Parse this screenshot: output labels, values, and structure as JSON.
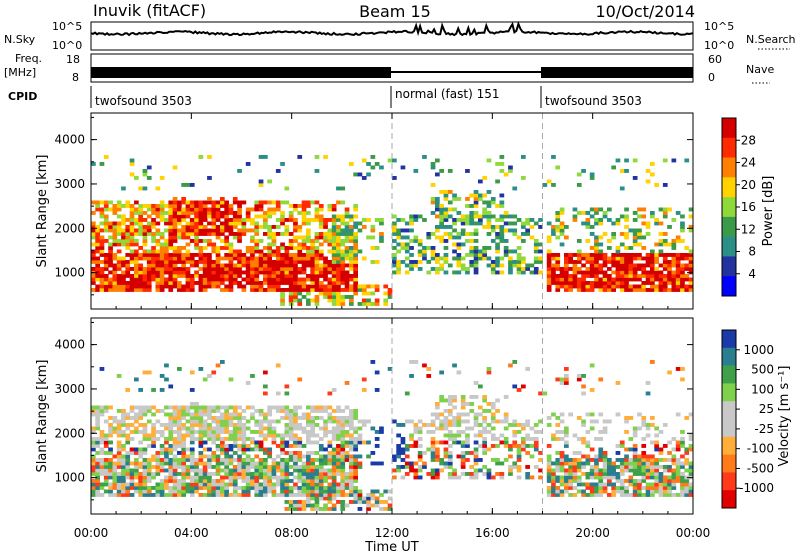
{
  "header": {
    "station": "Inuvik (fitACF)",
    "beam": "Beam 15",
    "date": "10/Oct/2014"
  },
  "top_strips": {
    "nsky_label": "N.Sky",
    "nsky_ticks": [
      "10^5",
      "10^0"
    ],
    "nsearch_label": "N.Search",
    "freq_label_1": "Freq.",
    "freq_label_2": "[MHz]",
    "freq_ticks": [
      "18",
      "8"
    ],
    "nave_label": "Nave",
    "nave_ticks": [
      "60",
      "0"
    ],
    "cpid_label": "CPID",
    "cpid_segments": [
      {
        "label": "twofsound 3503",
        "start_hour": 0,
        "end_hour": 12
      },
      {
        "label": "normal (fast) 151",
        "start_hour": 12,
        "end_hour": 18
      },
      {
        "label": "twofsound 3503",
        "start_hour": 18,
        "end_hour": 24
      }
    ]
  },
  "chart_data": [
    {
      "type": "heatmap",
      "title": "Power",
      "xlabel": "",
      "ylabel": "Slant Range [km]",
      "x_ticks": [
        "00:00",
        "04:00",
        "08:00",
        "12:00",
        "16:00",
        "20:00",
        "00:00"
      ],
      "x_tick_hours": [
        0,
        4,
        8,
        12,
        16,
        20,
        24
      ],
      "xlim_hours": [
        0,
        24
      ],
      "y_ticks": [
        "1000",
        "2000",
        "3000",
        "4000"
      ],
      "y_tick_values": [
        1000,
        2000,
        3000,
        4000
      ],
      "ylim": [
        180,
        4600
      ],
      "colorbar_label": "Power [dB]",
      "colorbar_ticks": [
        "28",
        "24",
        "20",
        "16",
        "12",
        "8",
        "4"
      ],
      "colorbar_colors": [
        "#d40000",
        "#ff2a00",
        "#ff7f00",
        "#ffd200",
        "#90d93a",
        "#3a9a4a",
        "#2a8f86",
        "#2233a0",
        "#0000ff"
      ]
    },
    {
      "type": "heatmap",
      "title": "Velocity",
      "xlabel": "Time UT",
      "ylabel": "Slant Range [km]",
      "x_ticks": [
        "00:00",
        "04:00",
        "08:00",
        "12:00",
        "16:00",
        "20:00",
        "00:00"
      ],
      "x_tick_hours": [
        0,
        4,
        8,
        12,
        16,
        20,
        24
      ],
      "xlim_hours": [
        0,
        24
      ],
      "y_ticks": [
        "1000",
        "2000",
        "3000",
        "4000"
      ],
      "y_tick_values": [
        1000,
        2000,
        3000,
        4000
      ],
      "ylim": [
        180,
        4600
      ],
      "colorbar_label": "Velocity [m s⁻¹]",
      "colorbar_ticks": [
        "1000",
        "500",
        "100",
        "25",
        "-25",
        "-100",
        "-500",
        "-1000"
      ],
      "colorbar_colors": [
        "#1a3aa8",
        "#2a7f8f",
        "#3fa04a",
        "#7fd04a",
        "#c8c8c8",
        "#c8c8c8",
        "#ffae3a",
        "#ff7a1a",
        "#ff3a1a",
        "#e00000"
      ]
    }
  ]
}
